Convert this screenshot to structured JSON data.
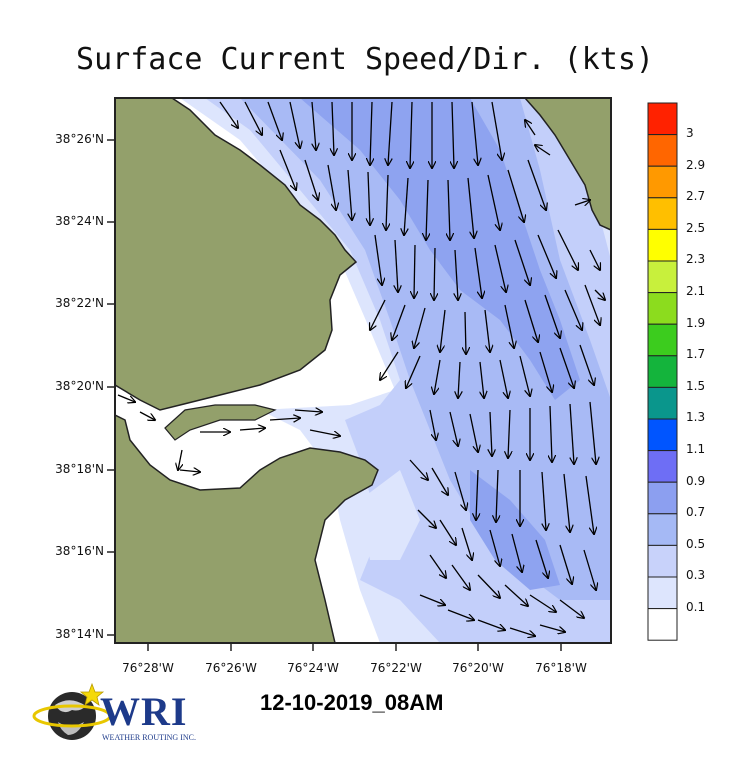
{
  "title": "Surface Current Speed/Dir. (kts)",
  "datestamp": "12-10-2019_08AM",
  "logo": {
    "name": "WRI",
    "subtitle": "WEATHER ROUTING INC."
  },
  "latitude_labels": [
    "38°26'N",
    "38°24'N",
    "38°22'N",
    "38°20'N",
    "38°18'N",
    "38°16'N",
    "38°14'N"
  ],
  "longitude_labels": [
    "76°28'W",
    "76°26'W",
    "76°24'W",
    "76°22'W",
    "76°20'W",
    "76°18'W"
  ],
  "colorbar": {
    "labels": [
      "3",
      "2.9",
      "2.7",
      "2.5",
      "2.3",
      "2.1",
      "1.9",
      "1.7",
      "1.5",
      "1.3",
      "1.1",
      "0.9",
      "0.7",
      "0.5",
      "0.3",
      "0.1"
    ],
    "colors": [
      "#ff2200",
      "#ff6600",
      "#ff9900",
      "#ffbf00",
      "#ffff00",
      "#c8f03c",
      "#8cdc1e",
      "#3ccc1e",
      "#14b43c",
      "#0a968c",
      "#0055ff",
      "#6e6ef5",
      "#8c9ff0",
      "#a5b9f5",
      "#c8d2fa",
      "#dde5fd",
      "#ffffff"
    ]
  },
  "colors": {
    "land": "#93a06b",
    "water_0_1": "#ffffff",
    "water_0_3": "#dde5fd",
    "water_0_5": "#c3cffa",
    "water_0_7": "#a8baf5",
    "water_0_9": "#8ea3f0"
  },
  "icons": {
    "logo_globe": "globe-with-star-icon"
  }
}
